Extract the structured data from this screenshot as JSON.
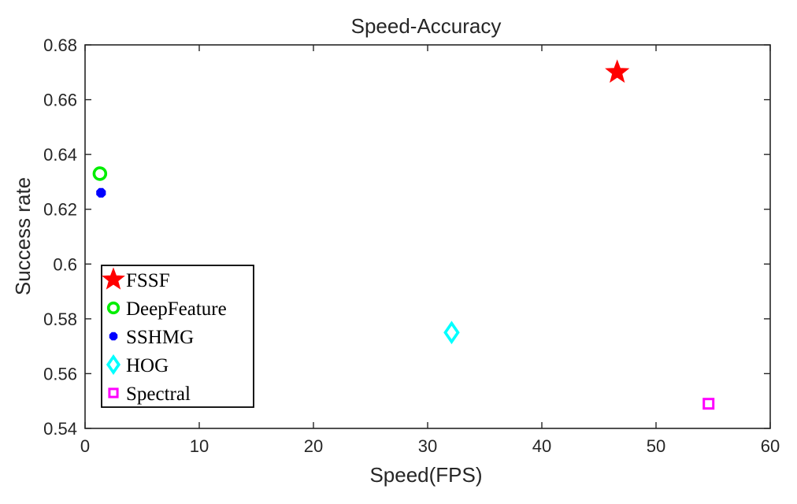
{
  "chart_data": {
    "type": "scatter",
    "title": "Speed-Accuracy",
    "xlabel": "Speed(FPS)",
    "ylabel": "Success rate",
    "xlim": [
      0,
      60
    ],
    "ylim": [
      0.54,
      0.68
    ],
    "xticks": [
      0,
      10,
      20,
      30,
      40,
      50,
      60
    ],
    "xtick_labels": [
      "0",
      "10",
      "20",
      "30",
      "40",
      "50",
      "60"
    ],
    "yticks": [
      0.54,
      0.56,
      0.58,
      0.6,
      0.62,
      0.64,
      0.66,
      0.68
    ],
    "ytick_labels": [
      "0.54",
      "0.56",
      "0.58",
      "0.6",
      "0.62",
      "0.64",
      "0.66",
      "0.68"
    ],
    "grid": false,
    "legend_position": "bottom-left",
    "series": [
      {
        "name": "FSSF",
        "x": 46.6,
        "y": 0.67,
        "marker": "star",
        "color": "#ff0000",
        "filled": true
      },
      {
        "name": "DeepFeature",
        "x": 1.3,
        "y": 0.633,
        "marker": "circle",
        "color": "#00ee00",
        "filled": false
      },
      {
        "name": "SSHMG",
        "x": 1.4,
        "y": 0.626,
        "marker": "hexagon",
        "color": "#0000ff",
        "filled": true
      },
      {
        "name": "HOG",
        "x": 32.1,
        "y": 0.575,
        "marker": "diamond",
        "color": "#00ffff",
        "filled": false
      },
      {
        "name": "Spectral",
        "x": 54.6,
        "y": 0.549,
        "marker": "square",
        "color": "#ff00ff",
        "filled": false
      }
    ]
  }
}
